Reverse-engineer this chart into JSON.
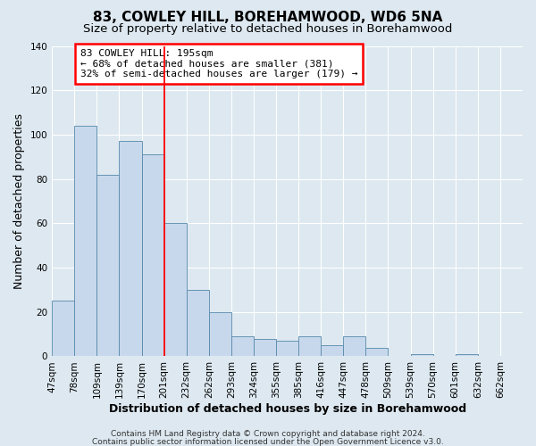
{
  "title": "83, COWLEY HILL, BOREHAMWOOD, WD6 5NA",
  "subtitle": "Size of property relative to detached houses in Borehamwood",
  "xlabel": "Distribution of detached houses by size in Borehamwood",
  "ylabel": "Number of detached properties",
  "bin_labels": [
    "47sqm",
    "78sqm",
    "109sqm",
    "139sqm",
    "170sqm",
    "201sqm",
    "232sqm",
    "262sqm",
    "293sqm",
    "324sqm",
    "355sqm",
    "385sqm",
    "416sqm",
    "447sqm",
    "478sqm",
    "509sqm",
    "539sqm",
    "570sqm",
    "601sqm",
    "632sqm",
    "662sqm"
  ],
  "bar_heights": [
    25,
    104,
    82,
    97,
    91,
    60,
    30,
    20,
    9,
    8,
    7,
    9,
    5,
    9,
    4,
    0,
    1,
    0,
    1,
    0,
    0
  ],
  "bar_color": "#c8d8ec",
  "bar_edgecolor": "#5588aa",
  "vline_x_idx": 5,
  "vline_color": "red",
  "ylim": [
    0,
    140
  ],
  "yticks": [
    0,
    20,
    40,
    60,
    80,
    100,
    120,
    140
  ],
  "annotation_text": "83 COWLEY HILL: 195sqm\n← 68% of detached houses are smaller (381)\n32% of semi-detached houses are larger (179) →",
  "annotation_box_color": "#ffffff",
  "annotation_border_color": "red",
  "footer_line1": "Contains HM Land Registry data © Crown copyright and database right 2024.",
  "footer_line2": "Contains public sector information licensed under the Open Government Licence v3.0.",
  "background_color": "#dde8f0",
  "plot_bg_color": "#dde8f0",
  "grid_color": "#ffffff",
  "title_fontsize": 11,
  "subtitle_fontsize": 9.5,
  "axis_label_fontsize": 9,
  "tick_fontsize": 7.5,
  "footer_fontsize": 6.5
}
